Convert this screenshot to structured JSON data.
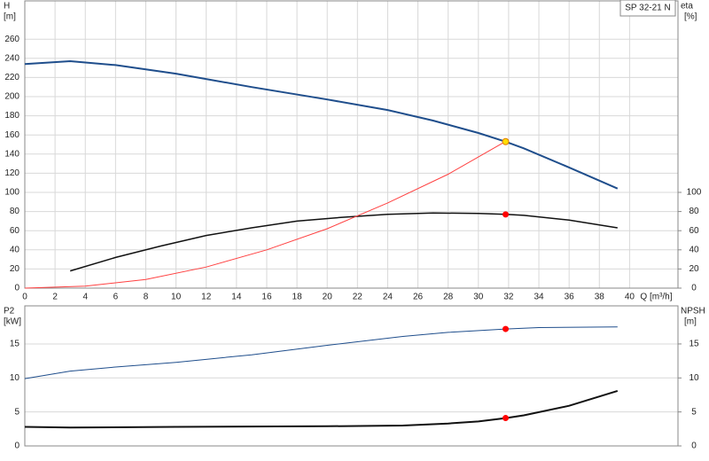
{
  "chart_data": [
    {
      "type": "line",
      "title": "SP 32-21 N",
      "x_label": "Q [m³/h]",
      "y_label": "H",
      "y_unit": "[m]",
      "y2_label": "eta",
      "y2_unit": "[%]",
      "xlim": [
        0,
        43.2
      ],
      "xticks": [
        0,
        2,
        4,
        6,
        8,
        10,
        12,
        14,
        16,
        18,
        20,
        22,
        24,
        26,
        28,
        30,
        32,
        34,
        36,
        38,
        40
      ],
      "ylim": [
        0,
        300
      ],
      "yticks": [
        0,
        20,
        40,
        60,
        80,
        100,
        120,
        140,
        160,
        180,
        200,
        220,
        240,
        260
      ],
      "y2lim": [
        0,
        300
      ],
      "y2ticks": [
        0,
        20,
        40,
        60,
        80,
        100
      ],
      "grid": true,
      "series": [
        {
          "color": "#1f4e8c",
          "width": 2,
          "x": [
            0,
            3,
            6,
            10,
            15,
            20,
            24,
            27,
            30,
            31.8,
            33,
            36,
            39.2
          ],
          "values": [
            234,
            237,
            233,
            224,
            210,
            197,
            186,
            175,
            162,
            153,
            146,
            126,
            104
          ]
        },
        {
          "color": "#111111",
          "width": 1.5,
          "axis": "y2",
          "x": [
            3,
            6,
            9,
            12,
            15,
            18,
            21,
            24,
            27,
            30,
            31.8,
            33,
            36,
            39.2
          ],
          "values": [
            18,
            32,
            44,
            55,
            63,
            70,
            74,
            77,
            78.5,
            78,
            77,
            76,
            71,
            63
          ]
        },
        {
          "color": "#ff4040",
          "width": 1,
          "x": [
            0,
            4,
            8,
            12,
            16,
            20,
            24,
            28,
            32
          ],
          "values": [
            0,
            2,
            9,
            22,
            40,
            62,
            89,
            119,
            155
          ]
        },
        {
          "color": "#ffdd00",
          "marker": true,
          "x": [
            31.8
          ],
          "values": [
            153
          ]
        },
        {
          "color": "#ff0000",
          "marker": true,
          "axis": "y2",
          "x": [
            31.8
          ],
          "values": [
            77
          ]
        }
      ]
    },
    {
      "type": "line",
      "y_label": "P2",
      "y_unit": "[kW]",
      "y2_label": "NPSH",
      "y2_unit": "[m]",
      "xlim": [
        0,
        43.2
      ],
      "ylim": [
        0,
        20.6
      ],
      "yticks": [
        0,
        5,
        10,
        15
      ],
      "y2lim": [
        0,
        20.6
      ],
      "y2ticks": [
        0,
        5,
        10,
        15
      ],
      "grid": true,
      "series": [
        {
          "color": "#1f4e8c",
          "width": 1,
          "x": [
            0,
            3,
            6,
            10,
            15,
            20,
            25,
            28,
            31.8,
            34,
            39.2
          ],
          "values": [
            9.9,
            11,
            11.6,
            12.3,
            13.4,
            14.8,
            16.1,
            16.7,
            17.2,
            17.4,
            17.5
          ]
        },
        {
          "color": "#111111",
          "width": 2,
          "axis": "y2",
          "x": [
            0,
            3,
            10,
            20,
            25,
            28,
            30,
            31.8,
            33,
            36,
            39.2
          ],
          "values": [
            2.8,
            2.7,
            2.8,
            2.9,
            3.0,
            3.3,
            3.6,
            4.1,
            4.5,
            5.9,
            8.1
          ]
        },
        {
          "color": "#ff0000",
          "marker": true,
          "x": [
            31.8
          ],
          "values": [
            17.2
          ]
        },
        {
          "color": "#ff0000",
          "marker": true,
          "axis": "y2",
          "x": [
            31.8
          ],
          "values": [
            4.1
          ]
        }
      ]
    }
  ]
}
